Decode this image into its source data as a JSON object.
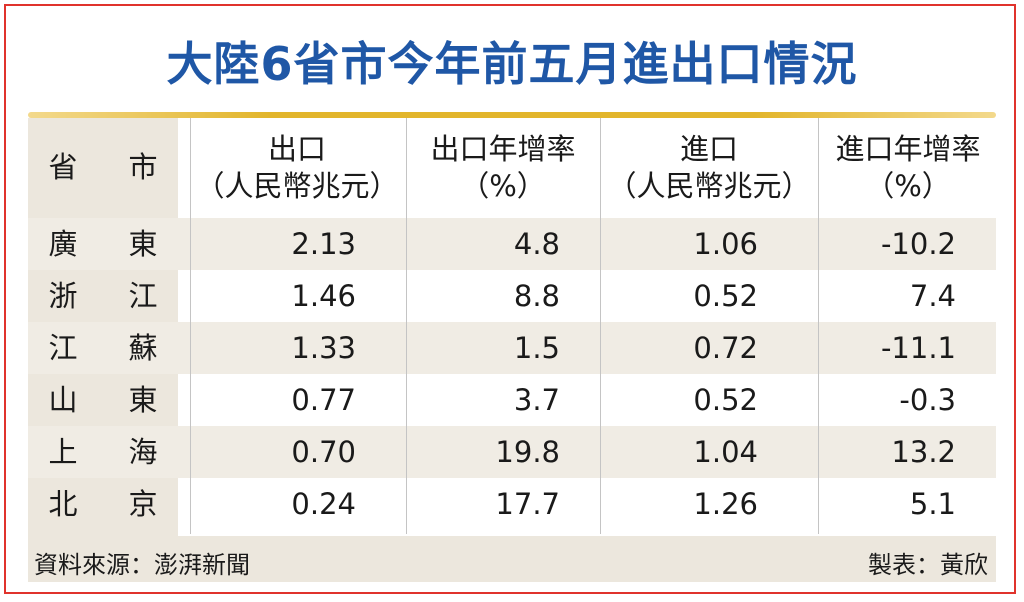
{
  "title": "大陸6省市今年前五月進出口情況",
  "header": {
    "province": "省",
    "city": "市",
    "export_line1": "出口",
    "export_line2": "（人民幣兆元）",
    "export_growth_line1": "出口年增率",
    "export_growth_line2": "（%）",
    "import_line1": "進口",
    "import_line2": "（人民幣兆元）",
    "import_growth_line1": "進口年增率",
    "import_growth_line2": "（%）"
  },
  "footer": {
    "source": "資料來源：澎湃新聞",
    "maker": "製表：黃欣"
  },
  "chart_data": {
    "type": "table",
    "title": "大陸6省市今年前五月進出口情況",
    "columns": [
      "省",
      "市",
      "出口（人民幣兆元）",
      "出口年增率（%）",
      "進口（人民幣兆元）",
      "進口年增率（%）"
    ],
    "rows": [
      {
        "p": "廣",
        "c": "東",
        "export": "2.13",
        "export_growth": "4.8",
        "import": "1.06",
        "import_growth": "-10.2"
      },
      {
        "p": "浙",
        "c": "江",
        "export": "1.46",
        "export_growth": "8.8",
        "import": "0.52",
        "import_growth": "7.4"
      },
      {
        "p": "江",
        "c": "蘇",
        "export": "1.33",
        "export_growth": "1.5",
        "import": "0.72",
        "import_growth": "-11.1"
      },
      {
        "p": "山",
        "c": "東",
        "export": "0.77",
        "export_growth": "3.7",
        "import": "0.52",
        "import_growth": "-0.3"
      },
      {
        "p": "上",
        "c": "海",
        "export": "0.70",
        "export_growth": "19.8",
        "import": "1.04",
        "import_growth": "13.2"
      },
      {
        "p": "北",
        "c": "京",
        "export": "0.24",
        "export_growth": "17.7",
        "import": "1.26",
        "import_growth": "5.1"
      }
    ]
  }
}
